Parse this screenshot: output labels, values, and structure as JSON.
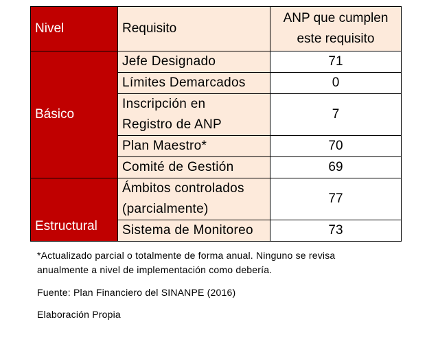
{
  "table": {
    "headers": {
      "nivel": "Nivel",
      "requisito": "Requisito",
      "anp_line1": "ANP que cumplen",
      "anp_line2": "este requisito"
    },
    "groups": [
      {
        "nivel": "Básico",
        "rows": [
          {
            "requisito": [
              "Jefe Designado"
            ],
            "valor": "71"
          },
          {
            "requisito": [
              "Límites Demarcados"
            ],
            "valor": "0"
          },
          {
            "requisito": [
              "Inscripción en",
              "Registro de ANP"
            ],
            "valor": "7"
          },
          {
            "requisito": [
              "Plan Maestro*"
            ],
            "valor": "70"
          },
          {
            "requisito": [
              "Comité de Gestión"
            ],
            "valor": "69"
          }
        ]
      },
      {
        "nivel": "Estructural",
        "rows": [
          {
            "requisito": [
              "Ámbitos controlados",
              "(parcialmente)"
            ],
            "valor": "77"
          },
          {
            "requisito": [
              "Sistema de Monitoreo"
            ],
            "valor": "73"
          }
        ]
      }
    ]
  },
  "notes": {
    "footnote_line1": "*Actualizado parcial o totalmente de forma anual. Ninguno se revisa",
    "footnote_line2": "anualmente a nivel de implementación como debería.",
    "source": "Fuente: Plan Financiero del SINANPE (2016)",
    "credit": "Elaboración Propia"
  },
  "colors": {
    "nivel_bg": "#c00000",
    "requisito_bg": "#fdeadb",
    "value_bg": "#ffffff"
  }
}
